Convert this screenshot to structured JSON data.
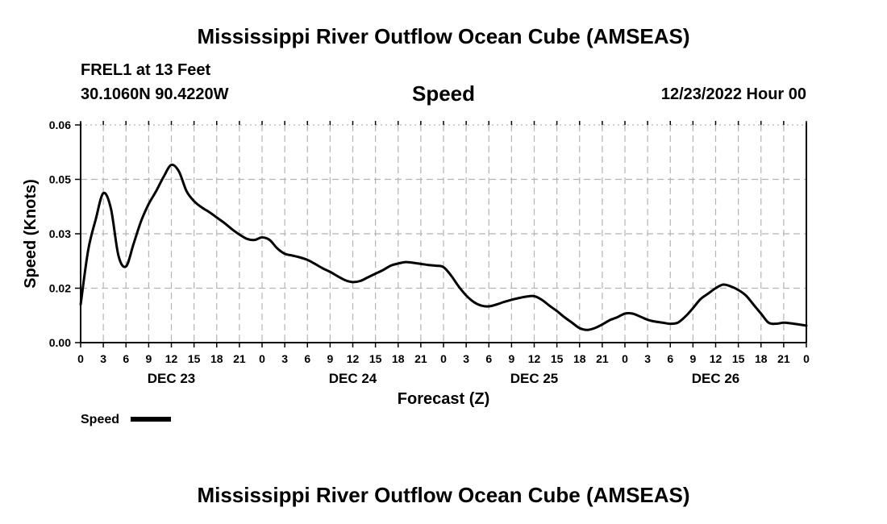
{
  "header": {
    "title": "Mississippi River Outflow Ocean Cube (AMSEAS)",
    "station": "FREL1 at 13 Feet",
    "coords": "30.1060N  90.4220W",
    "datetime": "12/23/2022 Hour 00",
    "bottom_title": "Mississippi River Outflow Ocean Cube (AMSEAS)"
  },
  "chart_data": {
    "type": "line",
    "title": "Speed",
    "xlabel": "Forecast (Z)",
    "ylabel": "Speed (Knots)",
    "ylim": [
      0,
      0.06
    ],
    "xlim": [
      0,
      96
    ],
    "yticks": [
      "0.00",
      "0.02",
      "0.03",
      "0.05",
      "0.06"
    ],
    "ytick_values": [
      0,
      0.015,
      0.03,
      0.045,
      0.06
    ],
    "xtick_labels": [
      "0",
      "3",
      "6",
      "9",
      "12",
      "15",
      "18",
      "21",
      "0",
      "3",
      "6",
      "9",
      "12",
      "15",
      "18",
      "21",
      "0",
      "3",
      "6",
      "9",
      "12",
      "15",
      "18",
      "21",
      "0",
      "3",
      "6",
      "9",
      "12",
      "15",
      "18",
      "21",
      "0"
    ],
    "day_labels": [
      {
        "label": "DEC 23",
        "hour": 12
      },
      {
        "label": "DEC 24",
        "hour": 36
      },
      {
        "label": "DEC 25",
        "hour": 60
      },
      {
        "label": "DEC 26",
        "hour": 84
      }
    ],
    "grid": true,
    "legend": "bottom-left",
    "colors": {
      "line": "#000000",
      "grid": "#b4b4b4"
    },
    "series": [
      {
        "name": "Speed",
        "x": [
          0,
          1,
          2,
          3,
          4,
          5,
          6,
          7,
          8,
          9,
          10,
          11,
          12,
          13,
          14,
          15,
          16,
          17,
          18,
          19,
          20,
          21,
          22,
          23,
          24,
          25,
          26,
          27,
          28,
          29,
          30,
          31,
          32,
          33,
          34,
          35,
          36,
          37,
          38,
          39,
          40,
          41,
          42,
          43,
          44,
          45,
          46,
          47,
          48,
          49,
          50,
          51,
          52,
          53,
          54,
          55,
          56,
          57,
          58,
          59,
          60,
          61,
          62,
          63,
          64,
          65,
          66,
          67,
          68,
          69,
          70,
          71,
          72,
          73,
          74,
          75,
          76,
          77,
          78,
          79,
          80,
          81,
          82,
          83,
          84,
          85,
          86,
          87,
          88,
          89,
          90,
          91,
          92,
          93,
          94,
          95,
          96
        ],
        "values": [
          0.0105,
          0.0255,
          0.034,
          0.0412,
          0.037,
          0.024,
          0.021,
          0.0272,
          0.0335,
          0.0382,
          0.0418,
          0.0458,
          0.049,
          0.0472,
          0.0418,
          0.039,
          0.0373,
          0.036,
          0.0345,
          0.033,
          0.0313,
          0.0298,
          0.0286,
          0.0283,
          0.029,
          0.0283,
          0.026,
          0.0245,
          0.024,
          0.0235,
          0.0228,
          0.0217,
          0.0205,
          0.0195,
          0.0183,
          0.0172,
          0.0167,
          0.017,
          0.018,
          0.019,
          0.02,
          0.0212,
          0.0218,
          0.0222,
          0.022,
          0.0217,
          0.0214,
          0.0212,
          0.0208,
          0.0185,
          0.0155,
          0.013,
          0.0112,
          0.0102,
          0.01,
          0.0105,
          0.0112,
          0.0118,
          0.0123,
          0.0127,
          0.0128,
          0.0118,
          0.0102,
          0.0087,
          0.007,
          0.0055,
          0.004,
          0.0035,
          0.004,
          0.005,
          0.0062,
          0.007,
          0.008,
          0.008,
          0.0072,
          0.0063,
          0.0058,
          0.0055,
          0.0052,
          0.0055,
          0.0072,
          0.0095,
          0.012,
          0.0135,
          0.015,
          0.016,
          0.0155,
          0.0145,
          0.013,
          0.0105,
          0.008,
          0.0055,
          0.0052,
          0.0055,
          0.0053,
          0.005,
          0.0047
        ]
      }
    ]
  }
}
